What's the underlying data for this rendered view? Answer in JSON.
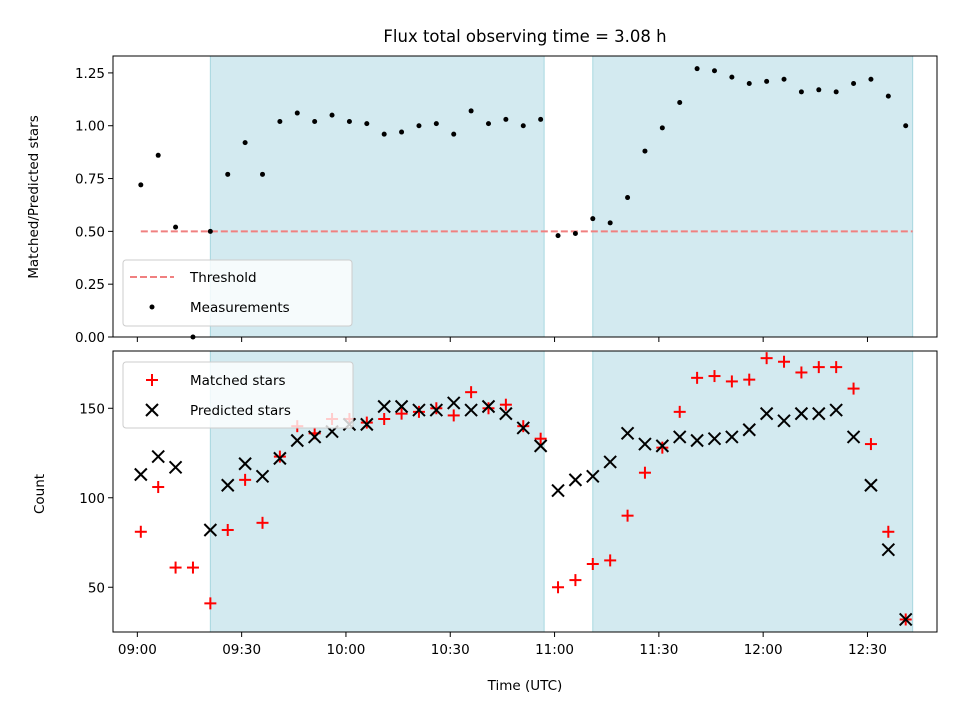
{
  "chart_data": [
    {
      "type": "scatter",
      "title": "Flux total observing time = 3.08 h",
      "xlabel": "",
      "ylabel": "Matched/Predicted stars",
      "ylim": [
        0,
        1.33
      ],
      "yticks": [
        "0.00",
        "0.25",
        "0.50",
        "0.75",
        "1.00",
        "1.25"
      ],
      "ytick_values": [
        0,
        0.25,
        0.5,
        0.75,
        1.0,
        1.25
      ],
      "xlim": [
        "08:53",
        "12:50"
      ],
      "xticks_shown": false,
      "shaded_spans": [
        [
          "09:21",
          "10:57"
        ],
        [
          "11:11",
          "12:43"
        ]
      ],
      "legend": {
        "placement": "lower-left",
        "entries": [
          "Threshold",
          "Measurements"
        ]
      },
      "threshold": {
        "name": "Threshold",
        "value": 0.5,
        "x_range": [
          "09:01",
          "12:43"
        ],
        "color": "#f08080",
        "style": "dashed"
      },
      "series": [
        {
          "name": "Measurements",
          "marker": "dot",
          "color": "#000000",
          "x": [
            "09:01",
            "09:06",
            "09:11",
            "09:16",
            "09:21",
            "09:26",
            "09:31",
            "09:36",
            "09:41",
            "09:46",
            "09:51",
            "09:56",
            "10:01",
            "10:06",
            "10:11",
            "10:16",
            "10:21",
            "10:26",
            "10:31",
            "10:36",
            "10:41",
            "10:46",
            "10:51",
            "10:56",
            "11:01",
            "11:06",
            "11:11",
            "11:16",
            "11:21",
            "11:26",
            "11:31",
            "11:36",
            "11:41",
            "11:46",
            "11:51",
            "11:56",
            "12:01",
            "12:06",
            "12:11",
            "12:16",
            "12:21",
            "12:26",
            "12:31",
            "12:36",
            "12:41"
          ],
          "y": [
            0.72,
            0.86,
            0.52,
            0.0,
            0.5,
            0.77,
            0.92,
            0.77,
            1.02,
            1.06,
            1.02,
            1.05,
            1.02,
            1.01,
            0.96,
            0.97,
            1.0,
            1.01,
            0.96,
            1.07,
            1.01,
            1.03,
            1.0,
            1.03,
            0.48,
            0.49,
            0.56,
            0.54,
            0.66,
            0.88,
            0.99,
            1.11,
            1.27,
            1.26,
            1.23,
            1.2,
            1.21,
            1.22,
            1.16,
            1.17,
            1.16,
            1.2,
            1.22,
            1.14,
            1.0
          ]
        }
      ]
    },
    {
      "type": "scatter",
      "title": "",
      "xlabel": "Time (UTC)",
      "ylabel": "Count",
      "ylim": [
        25,
        182
      ],
      "yticks": [
        "50",
        "100",
        "150"
      ],
      "ytick_values": [
        50,
        100,
        150
      ],
      "xlim": [
        "08:53",
        "12:50"
      ],
      "xticks": [
        "09:00",
        "09:30",
        "10:00",
        "10:30",
        "11:00",
        "11:30",
        "12:00",
        "12:30"
      ],
      "shaded_spans": [
        [
          "09:21",
          "10:57"
        ],
        [
          "11:11",
          "12:43"
        ]
      ],
      "legend": {
        "placement": "upper-left",
        "entries": [
          "Matched stars",
          "Predicted stars"
        ]
      },
      "series": [
        {
          "name": "Matched stars",
          "marker": "plus",
          "color": "#ff0000",
          "x": [
            "09:01",
            "09:06",
            "09:11",
            "09:16",
            "09:21",
            "09:26",
            "09:31",
            "09:36",
            "09:41",
            "09:46",
            "09:51",
            "09:56",
            "10:01",
            "10:06",
            "10:11",
            "10:16",
            "10:21",
            "10:26",
            "10:31",
            "10:36",
            "10:41",
            "10:46",
            "10:51",
            "10:56",
            "11:01",
            "11:06",
            "11:11",
            "11:16",
            "11:21",
            "11:26",
            "11:31",
            "11:36",
            "11:41",
            "11:46",
            "11:51",
            "11:56",
            "12:01",
            "12:06",
            "12:11",
            "12:16",
            "12:21",
            "12:26",
            "12:31",
            "12:36",
            "12:41"
          ],
          "y": [
            81,
            106,
            61,
            61,
            41,
            82,
            110,
            86,
            123,
            140,
            136,
            144,
            144,
            142,
            144,
            147,
            148,
            150,
            146,
            159,
            150,
            152,
            140,
            133,
            50,
            54,
            63,
            65,
            90,
            114,
            128,
            148,
            167,
            168,
            165,
            166,
            178,
            176,
            170,
            173,
            173,
            161,
            130,
            81,
            32
          ]
        },
        {
          "name": "Predicted stars",
          "marker": "x",
          "color": "#000000",
          "x": [
            "09:01",
            "09:06",
            "09:11",
            "09:16",
            "09:21",
            "09:26",
            "09:31",
            "09:36",
            "09:41",
            "09:46",
            "09:51",
            "09:56",
            "10:01",
            "10:06",
            "10:11",
            "10:16",
            "10:21",
            "10:26",
            "10:31",
            "10:36",
            "10:41",
            "10:46",
            "10:51",
            "10:56",
            "11:01",
            "11:06",
            "11:11",
            "11:16",
            "11:21",
            "11:26",
            "11:31",
            "11:36",
            "11:41",
            "11:46",
            "11:51",
            "11:56",
            "12:01",
            "12:06",
            "12:11",
            "12:16",
            "12:21",
            "12:26",
            "12:31",
            "12:36",
            "12:41"
          ],
          "y": [
            113,
            123,
            117,
            null,
            82,
            107,
            119,
            112,
            122,
            132,
            134,
            137,
            141,
            141,
            151,
            151,
            149,
            149,
            153,
            149,
            151,
            147,
            139,
            129,
            104,
            110,
            112,
            120,
            136,
            130,
            129,
            134,
            132,
            133,
            134,
            138,
            147,
            143,
            147,
            147,
            149,
            134,
            107,
            71,
            32
          ]
        }
      ]
    }
  ],
  "colors": {
    "shade": "#d3eaf0",
    "shade_edge": "#a8d8e0",
    "threshold": "#f08080",
    "matched": "#ff0000",
    "predicted": "#000000"
  }
}
